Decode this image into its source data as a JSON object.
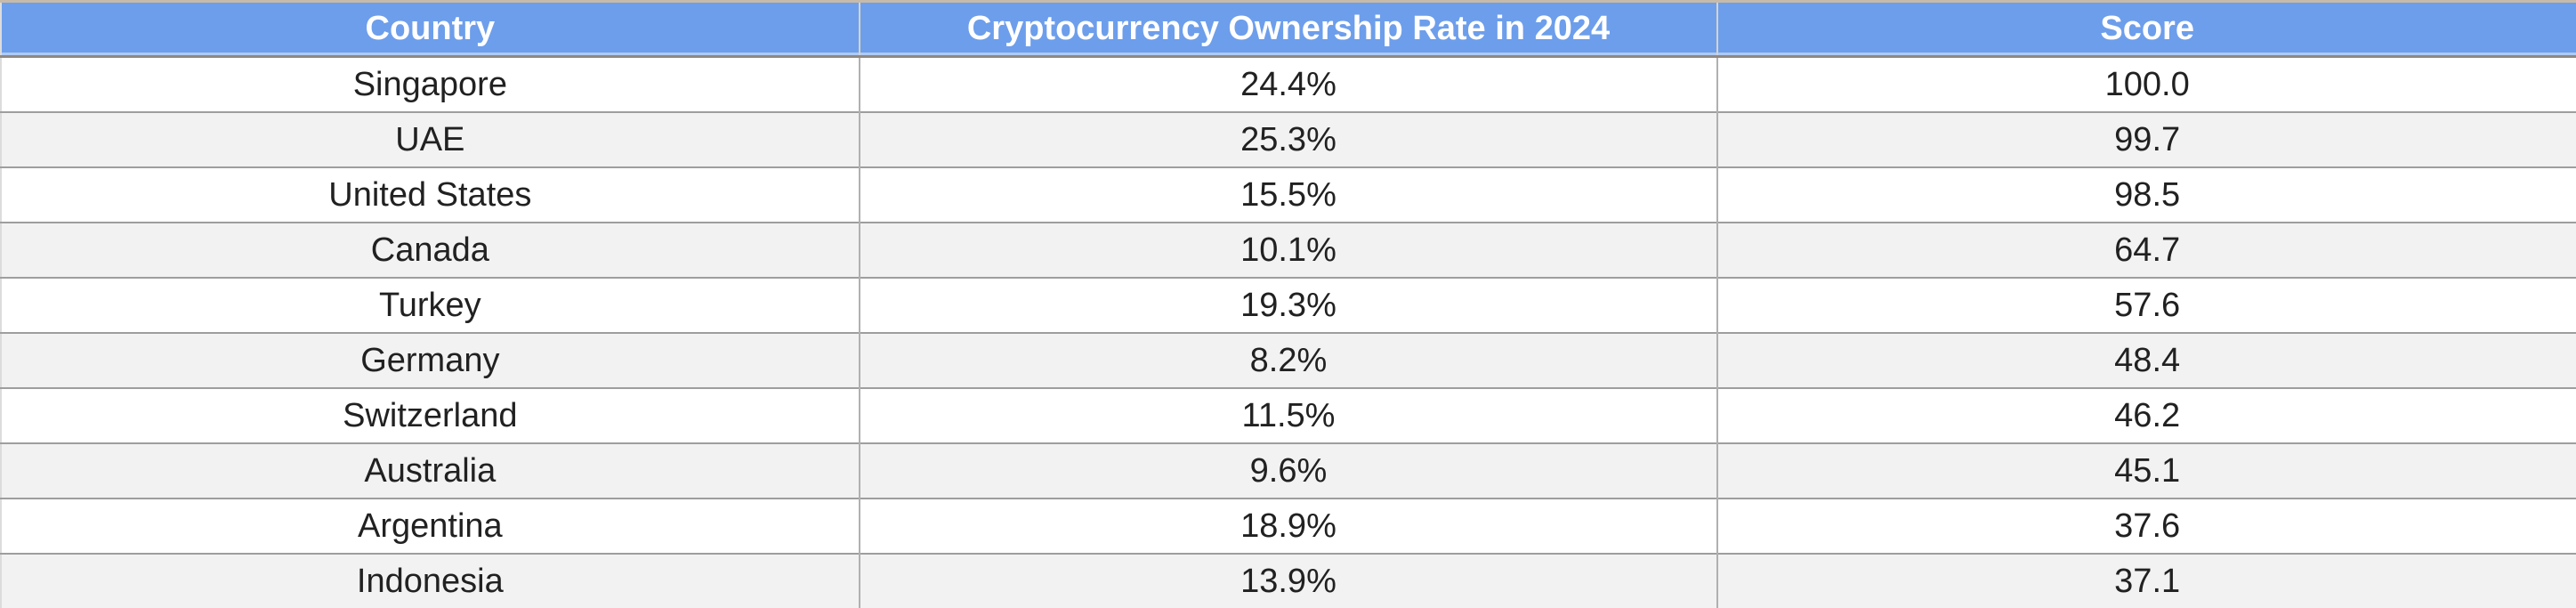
{
  "table": {
    "columns": [
      "Country",
      "Cryptocurrency Ownership Rate in 2024",
      "Score"
    ],
    "rows": [
      {
        "country": "Singapore",
        "rate": "24.4%",
        "score": "100.0"
      },
      {
        "country": "UAE",
        "rate": "25.3%",
        "score": "99.7"
      },
      {
        "country": "United States",
        "rate": "15.5%",
        "score": "98.5"
      },
      {
        "country": "Canada",
        "rate": "10.1%",
        "score": "64.7"
      },
      {
        "country": "Turkey",
        "rate": "19.3%",
        "score": "57.6"
      },
      {
        "country": "Germany",
        "rate": "8.2%",
        "score": "48.4"
      },
      {
        "country": "Switzerland",
        "rate": "11.5%",
        "score": "46.2"
      },
      {
        "country": "Australia",
        "rate": "9.6%",
        "score": "45.1"
      },
      {
        "country": "Argentina",
        "rate": "18.9%",
        "score": "37.6"
      },
      {
        "country": "Indonesia",
        "rate": "13.9%",
        "score": "37.1"
      }
    ]
  },
  "colors": {
    "header_bg": "#6d9eeb",
    "header_text": "#ffffff",
    "row_bg": "#ffffff",
    "row_alt_bg": "#f2f2f2",
    "body_text": "#212121",
    "row_border": "#9e9e9e",
    "col_border": "#b0b0b0",
    "header_top_border": "#c7bba8",
    "header_bottom_border": "#8e8881",
    "header_divider": "#d9d2c6"
  },
  "chart_data": {
    "type": "table",
    "columns": [
      "Country",
      "Cryptocurrency Ownership Rate in 2024",
      "Score"
    ],
    "rows": [
      [
        "Singapore",
        "24.4%",
        100.0
      ],
      [
        "UAE",
        "25.3%",
        99.7
      ],
      [
        "United States",
        "15.5%",
        98.5
      ],
      [
        "Canada",
        "10.1%",
        64.7
      ],
      [
        "Turkey",
        "19.3%",
        57.6
      ],
      [
        "Germany",
        "8.2%",
        48.4
      ],
      [
        "Switzerland",
        "11.5%",
        46.2
      ],
      [
        "Australia",
        "9.6%",
        45.1
      ],
      [
        "Argentina",
        "18.9%",
        37.6
      ],
      [
        "Indonesia",
        "13.9%",
        37.1
      ]
    ],
    "ownership_rate_percent": [
      24.4,
      25.3,
      15.5,
      10.1,
      19.3,
      8.2,
      11.5,
      9.6,
      18.9,
      13.9
    ],
    "scores": [
      100.0,
      99.7,
      98.5,
      64.7,
      57.6,
      48.4,
      46.2,
      45.1,
      37.6,
      37.1
    ]
  }
}
